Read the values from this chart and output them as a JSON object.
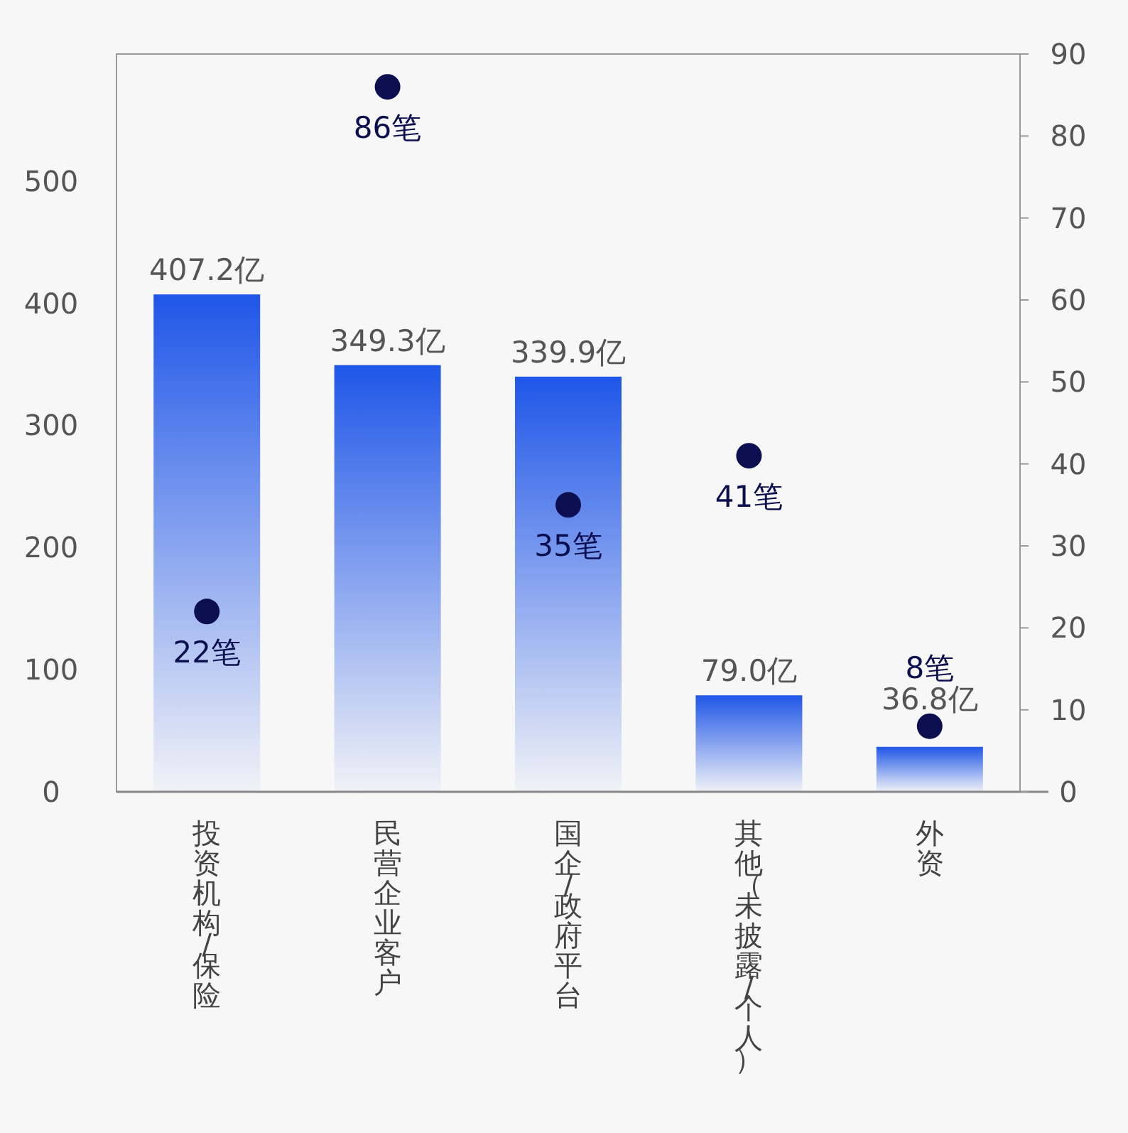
{
  "chart_data": {
    "type": "bar",
    "categories": [
      "投资机构/保险",
      "民营企业客户",
      "国企/政府平台",
      "其他（未披露/个人）",
      "外资"
    ],
    "series": [
      {
        "color": "#1f56e8",
        "values": [
          407.2,
          349.3,
          339.9,
          79.0,
          36.8
        ],
        "value_labels": [
          "407.2亿",
          "349.3亿",
          "339.9亿",
          "79.0亿",
          "36.8亿"
        ]
      },
      {
        "type": "scatter",
        "axis": "y2",
        "color": "#0b0f4f",
        "marker": "circle",
        "values": [
          22,
          86,
          35,
          41,
          8
        ],
        "value_labels": [
          "22笔",
          "86笔",
          "35笔",
          "41笔",
          "8笔"
        ]
      }
    ],
    "ylim": [
      0,
      604
    ],
    "yticks": [
      0,
      100,
      200,
      300,
      400,
      500
    ],
    "y2lim": [
      0,
      90
    ],
    "y2ticks": [
      0,
      10,
      20,
      30,
      40,
      50,
      60,
      70,
      80,
      90
    ]
  }
}
